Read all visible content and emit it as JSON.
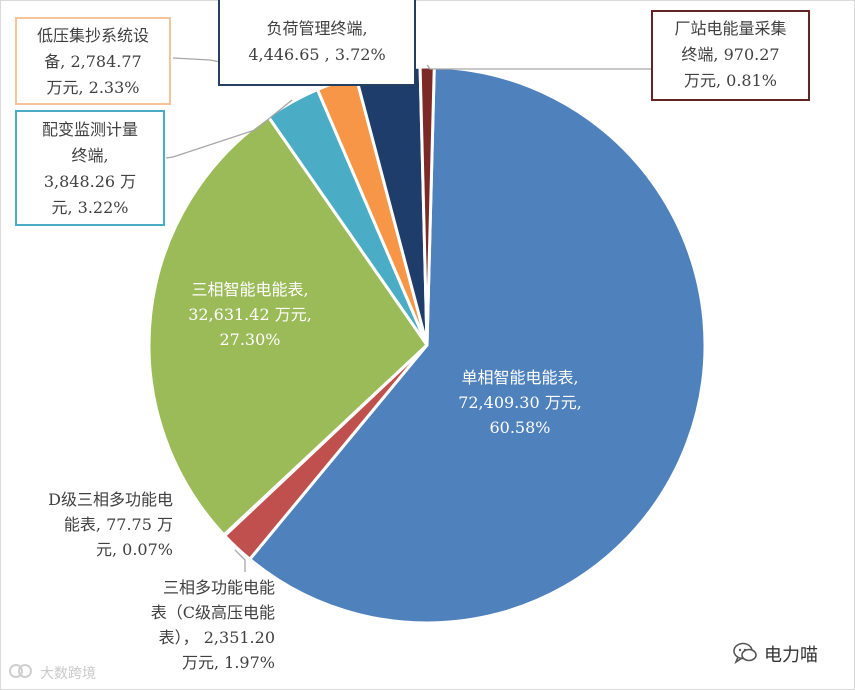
{
  "chart_data": {
    "type": "pie",
    "title": "",
    "unit": "万元",
    "slices": [
      {
        "name": "单相智能电能表",
        "value": 72409.3,
        "percent": 60.58,
        "color": "#4f81bd",
        "lines": [
          "单相智能电能表,",
          "72,409.30 万元,",
          "60.58%"
        ]
      },
      {
        "name": "三相多功能电能表（C级高压电能表）",
        "value": 2351.2,
        "percent": 1.97,
        "color": "#c0504d",
        "lines": [
          "三相多功能电能",
          "表（C级高压电能",
          "表），  2,351.20",
          "万元, 1.97%"
        ]
      },
      {
        "name": "D级三相多功能电能表",
        "value": 77.75,
        "percent": 0.07,
        "color": "#9bbb59",
        "lines": [
          "D级三相多功能电",
          "能表,  77.75 万",
          "元, 0.07%"
        ]
      },
      {
        "name": "三相智能电能表",
        "value": 32631.42,
        "percent": 27.3,
        "color": "#9bbb59",
        "lines": [
          "三相智能电能表,",
          "32,631.42 万元,",
          "27.30%"
        ]
      },
      {
        "name": "配变监测计量终端",
        "value": 3848.26,
        "percent": 3.22,
        "color": "#4bacc6",
        "lines": [
          "配变监测计量",
          "终端,",
          "3,848.26 万",
          "元, 3.22%"
        ]
      },
      {
        "name": "低压集抄系统设备",
        "value": 2784.77,
        "percent": 2.33,
        "color": "#f79646",
        "lines": [
          "低压集抄系统设",
          "备,  2,784.77",
          "万元, 2.33%"
        ]
      },
      {
        "name": "负荷管理终端",
        "value": 4446.65,
        "percent": 3.72,
        "color": "#1f3d6b",
        "lines": [
          "负荷管理终端,",
          "4,446.65 , 3.72%"
        ]
      },
      {
        "name": "厂站电能量采集终端",
        "value": 970.27,
        "percent": 0.81,
        "color": "#7b2a27",
        "lines": [
          "厂站电能量采集",
          "终端,  970.27",
          "万元, 0.81%"
        ]
      }
    ],
    "legend": "none"
  },
  "watermark": "大数跨境",
  "brand": "电力喵",
  "colors": {
    "leader_line": "#a6a6a6",
    "box_orange": "#f5c49a",
    "box_cyan": "#4bacc6",
    "box_navy": "#243f60",
    "box_maroon": "#632523"
  }
}
